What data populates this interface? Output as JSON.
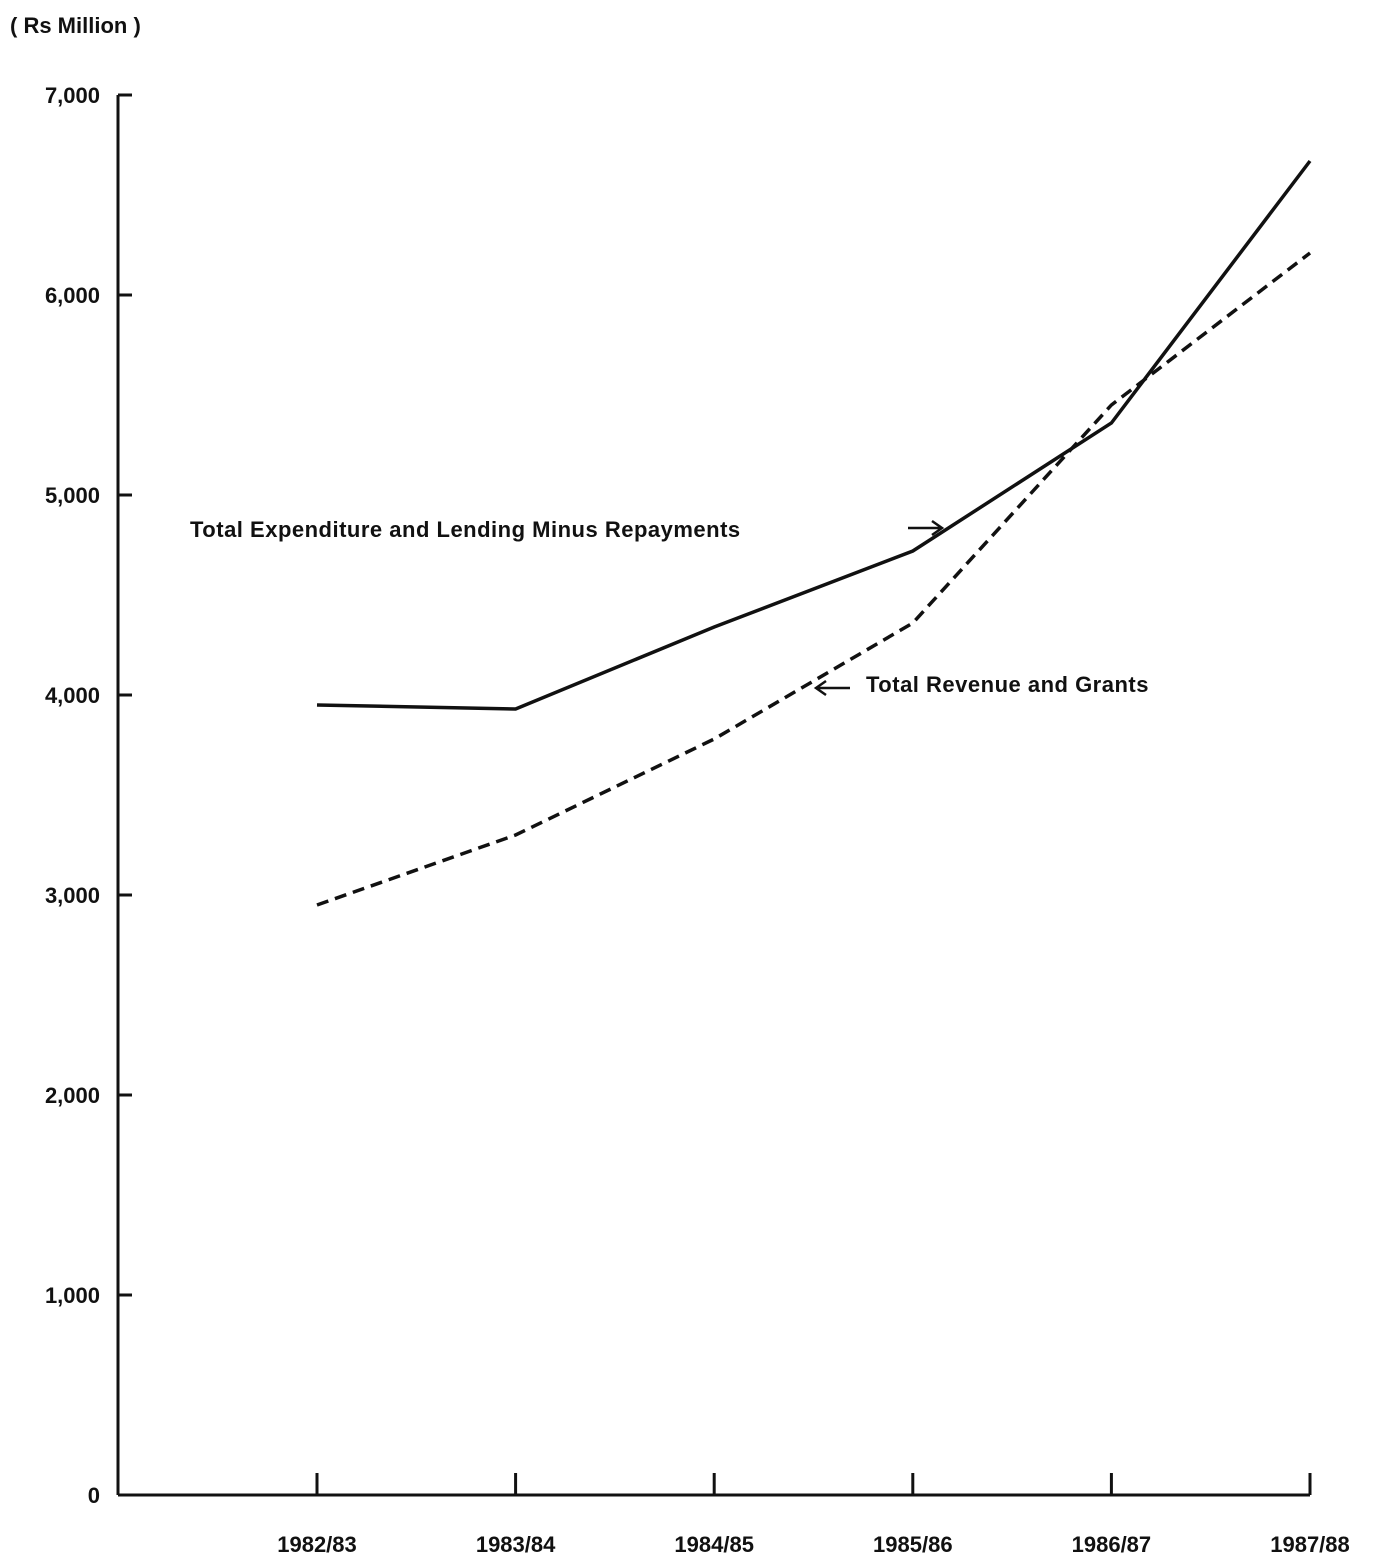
{
  "chart_data": {
    "type": "line",
    "unit_label": "( Rs Million )",
    "categories": [
      "1982/83",
      "1983/84",
      "1984/85",
      "1985/86",
      "1986/87",
      "1987/88"
    ],
    "y_ticks": [
      "0",
      "1,000",
      "2,000",
      "3,000",
      "4,000",
      "5,000",
      "6,000",
      "7,000"
    ],
    "ylim": [
      0,
      7000
    ],
    "grid": false,
    "series": [
      {
        "name": "Total Expenditure and Lending Minus Repayments",
        "style": "solid",
        "values": [
          3950,
          3930,
          4340,
          4720,
          5360,
          6670
        ]
      },
      {
        "name": "Total Revenue and Grants",
        "style": "dashed",
        "values": [
          2950,
          3300,
          3780,
          4360,
          5450,
          6210
        ]
      }
    ]
  }
}
